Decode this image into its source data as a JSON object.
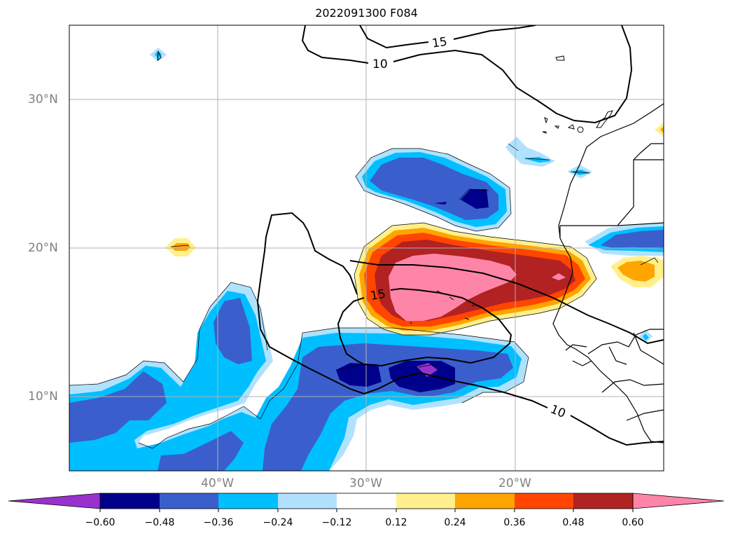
{
  "title": "2022091300 F084",
  "latitude_labels": [
    "30°N",
    "20°N",
    "10°N"
  ],
  "longitude_labels": [
    "40°W",
    "30°W",
    "20°W"
  ],
  "contour_labels": [
    "15",
    "10",
    "15",
    "10"
  ],
  "colorbar": {
    "ticks": [
      "−0.60",
      "−0.48",
      "−0.36",
      "−0.24",
      "−0.12",
      "0.12",
      "0.24",
      "0.36",
      "0.48",
      "0.60"
    ],
    "colors": [
      "#9932cc",
      "#00008b",
      "#3a5fcd",
      "#00bfff",
      "#b0e2ff",
      "#ffffff",
      "#fff08c",
      "#ffa500",
      "#ff4500",
      "#b22222",
      "#ff85a8"
    ]
  },
  "colors": {
    "grid": "#b0b0b0",
    "coastline": "#000000",
    "contour": "#000000",
    "axis_label": "#808080"
  },
  "map_extent": {
    "lon_range": [
      -50,
      -10
    ],
    "lat_range": [
      5,
      35
    ]
  }
}
